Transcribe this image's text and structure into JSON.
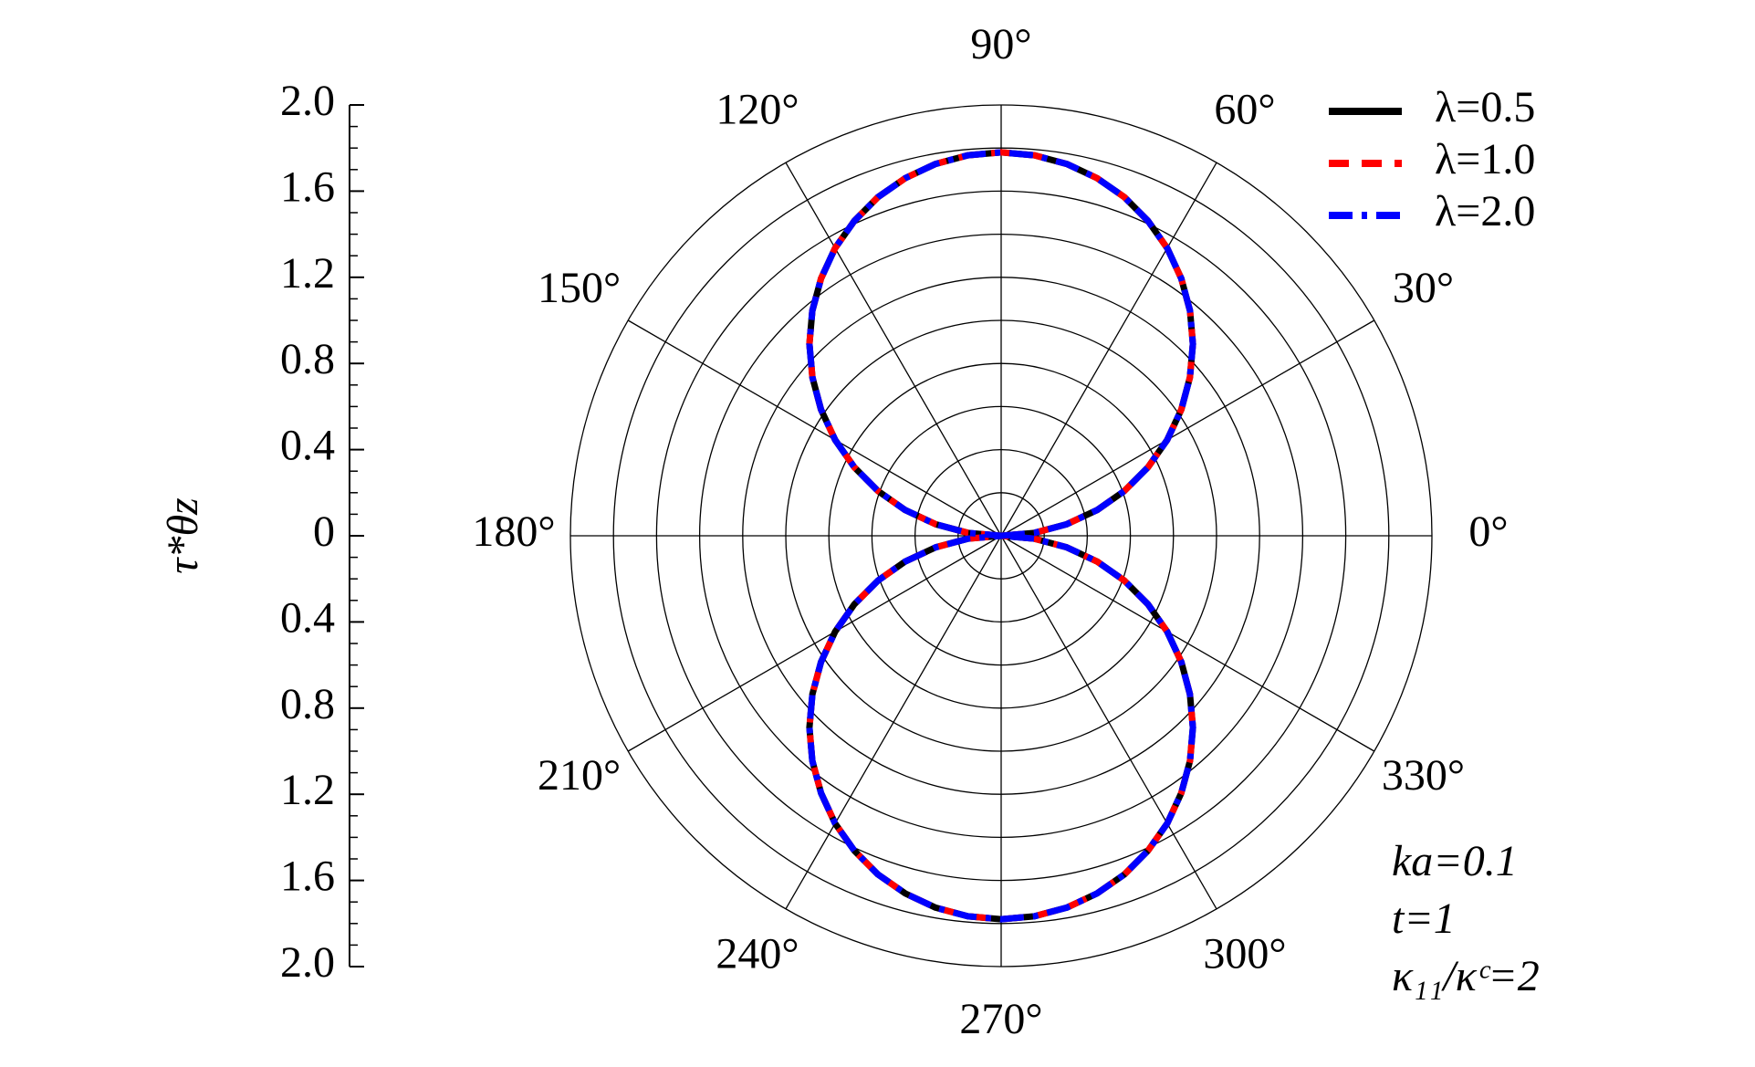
{
  "chart_data": {
    "type": "polar",
    "ylabel": "τ*θz",
    "ylim": [
      -2,
      2
    ],
    "yticks": [
      {
        "value": 2,
        "label": "2.0"
      },
      1.6,
      1.2,
      0.8,
      0.4,
      0,
      {
        "value": -0.4,
        "label": "0.4"
      },
      {
        "value": -0.8,
        "label": "0.8"
      },
      {
        "value": -1.2,
        "label": "1.2"
      },
      {
        "value": -1.6,
        "label": "1.6"
      },
      {
        "value": -2,
        "label": "2.0"
      }
    ],
    "yminorticks": [
      1.9,
      1.8,
      1.7,
      1.5,
      1.4,
      1.3,
      1.1,
      1.0,
      0.9,
      0.7,
      0.6,
      0.5,
      0.3,
      0.2,
      0.1,
      -0.1,
      -0.2,
      -0.3,
      -0.5,
      -0.6,
      -0.7,
      -0.9,
      -1.0,
      -1.1,
      -1.3,
      -1.4,
      -1.5,
      -1.7,
      -1.8,
      -1.9
    ],
    "rgrid": [
      0.2,
      0.4,
      0.6,
      0.8,
      1.0,
      1.2,
      1.4,
      1.6,
      1.8,
      2.0
    ],
    "thetaticks": [
      {
        "value": 0,
        "label": "0°"
      },
      {
        "value": 30,
        "label": "30°"
      },
      {
        "value": 60,
        "label": "60°"
      },
      {
        "value": 90,
        "label": "90°"
      },
      {
        "value": 120,
        "label": "120°"
      },
      {
        "value": 150,
        "label": "150°"
      },
      {
        "value": 180,
        "label": "180°"
      },
      {
        "value": 210,
        "label": "210°"
      },
      {
        "value": 240,
        "label": "240°"
      },
      {
        "value": 270,
        "label": "270°"
      },
      {
        "value": 300,
        "label": "300°"
      },
      {
        "value": 330,
        "label": "330°"
      }
    ],
    "x": [
      0,
      5,
      10,
      15,
      20,
      25,
      30,
      35,
      40,
      45,
      50,
      55,
      60,
      65,
      70,
      75,
      80,
      85,
      90,
      95,
      100,
      105,
      110,
      115,
      120,
      125,
      130,
      135,
      140,
      145,
      150,
      155,
      160,
      165,
      170,
      175,
      180,
      185,
      190,
      195,
      200,
      205,
      210,
      215,
      220,
      225,
      230,
      235,
      240,
      245,
      250,
      255,
      260,
      265,
      270,
      275,
      280,
      285,
      290,
      295,
      300,
      305,
      310,
      315,
      320,
      325,
      330,
      335,
      340,
      345,
      350,
      355,
      360
    ],
    "series": [
      {
        "name": "λ=0.5",
        "color": "#000000",
        "linestyle": "solid",
        "values": [
          0,
          0.155,
          0.309,
          0.461,
          0.609,
          0.752,
          0.89,
          1.021,
          1.144,
          1.259,
          1.364,
          1.458,
          1.542,
          1.613,
          1.673,
          1.719,
          1.753,
          1.773,
          1.78,
          1.773,
          1.753,
          1.719,
          1.673,
          1.613,
          1.542,
          1.458,
          1.364,
          1.259,
          1.144,
          1.021,
          0.89,
          0.752,
          0.609,
          0.461,
          0.309,
          0.155,
          0,
          0.155,
          0.309,
          0.461,
          0.609,
          0.752,
          0.89,
          1.021,
          1.144,
          1.259,
          1.364,
          1.458,
          1.542,
          1.613,
          1.673,
          1.719,
          1.753,
          1.773,
          1.78,
          1.773,
          1.753,
          1.719,
          1.673,
          1.613,
          1.542,
          1.458,
          1.364,
          1.259,
          1.144,
          1.021,
          0.89,
          0.752,
          0.609,
          0.461,
          0.309,
          0.155,
          0
        ]
      },
      {
        "name": "λ=1.0",
        "color": "#ff0000",
        "linestyle": "dashed",
        "values": [
          0,
          0.155,
          0.309,
          0.461,
          0.609,
          0.752,
          0.89,
          1.021,
          1.144,
          1.259,
          1.364,
          1.458,
          1.542,
          1.613,
          1.673,
          1.719,
          1.753,
          1.773,
          1.78,
          1.773,
          1.753,
          1.719,
          1.673,
          1.613,
          1.542,
          1.458,
          1.364,
          1.259,
          1.144,
          1.021,
          0.89,
          0.752,
          0.609,
          0.461,
          0.309,
          0.155,
          0,
          0.155,
          0.309,
          0.461,
          0.609,
          0.752,
          0.89,
          1.021,
          1.144,
          1.259,
          1.364,
          1.458,
          1.542,
          1.613,
          1.673,
          1.719,
          1.753,
          1.773,
          1.78,
          1.773,
          1.753,
          1.719,
          1.673,
          1.613,
          1.542,
          1.458,
          1.364,
          1.259,
          1.144,
          1.021,
          0.89,
          0.752,
          0.609,
          0.461,
          0.309,
          0.155,
          0
        ]
      },
      {
        "name": "λ=2.0",
        "color": "#0000ff",
        "linestyle": "dashdot",
        "values": [
          0,
          0.155,
          0.309,
          0.461,
          0.609,
          0.752,
          0.89,
          1.021,
          1.144,
          1.259,
          1.364,
          1.458,
          1.542,
          1.613,
          1.673,
          1.719,
          1.753,
          1.773,
          1.78,
          1.773,
          1.753,
          1.719,
          1.673,
          1.613,
          1.542,
          1.458,
          1.364,
          1.259,
          1.144,
          1.021,
          0.89,
          0.752,
          0.609,
          0.461,
          0.309,
          0.155,
          0,
          0.155,
          0.309,
          0.461,
          0.609,
          0.752,
          0.89,
          1.021,
          1.144,
          1.259,
          1.364,
          1.458,
          1.542,
          1.613,
          1.673,
          1.719,
          1.753,
          1.773,
          1.78,
          1.773,
          1.753,
          1.719,
          1.673,
          1.613,
          1.542,
          1.458,
          1.364,
          1.259,
          1.144,
          1.021,
          0.89,
          0.752,
          0.609,
          0.461,
          0.309,
          0.155,
          0
        ]
      }
    ],
    "legend": "upper right",
    "annotations": [
      "ka=0.1",
      "t=1",
      "κ₁₁/κᶜ=2"
    ]
  }
}
